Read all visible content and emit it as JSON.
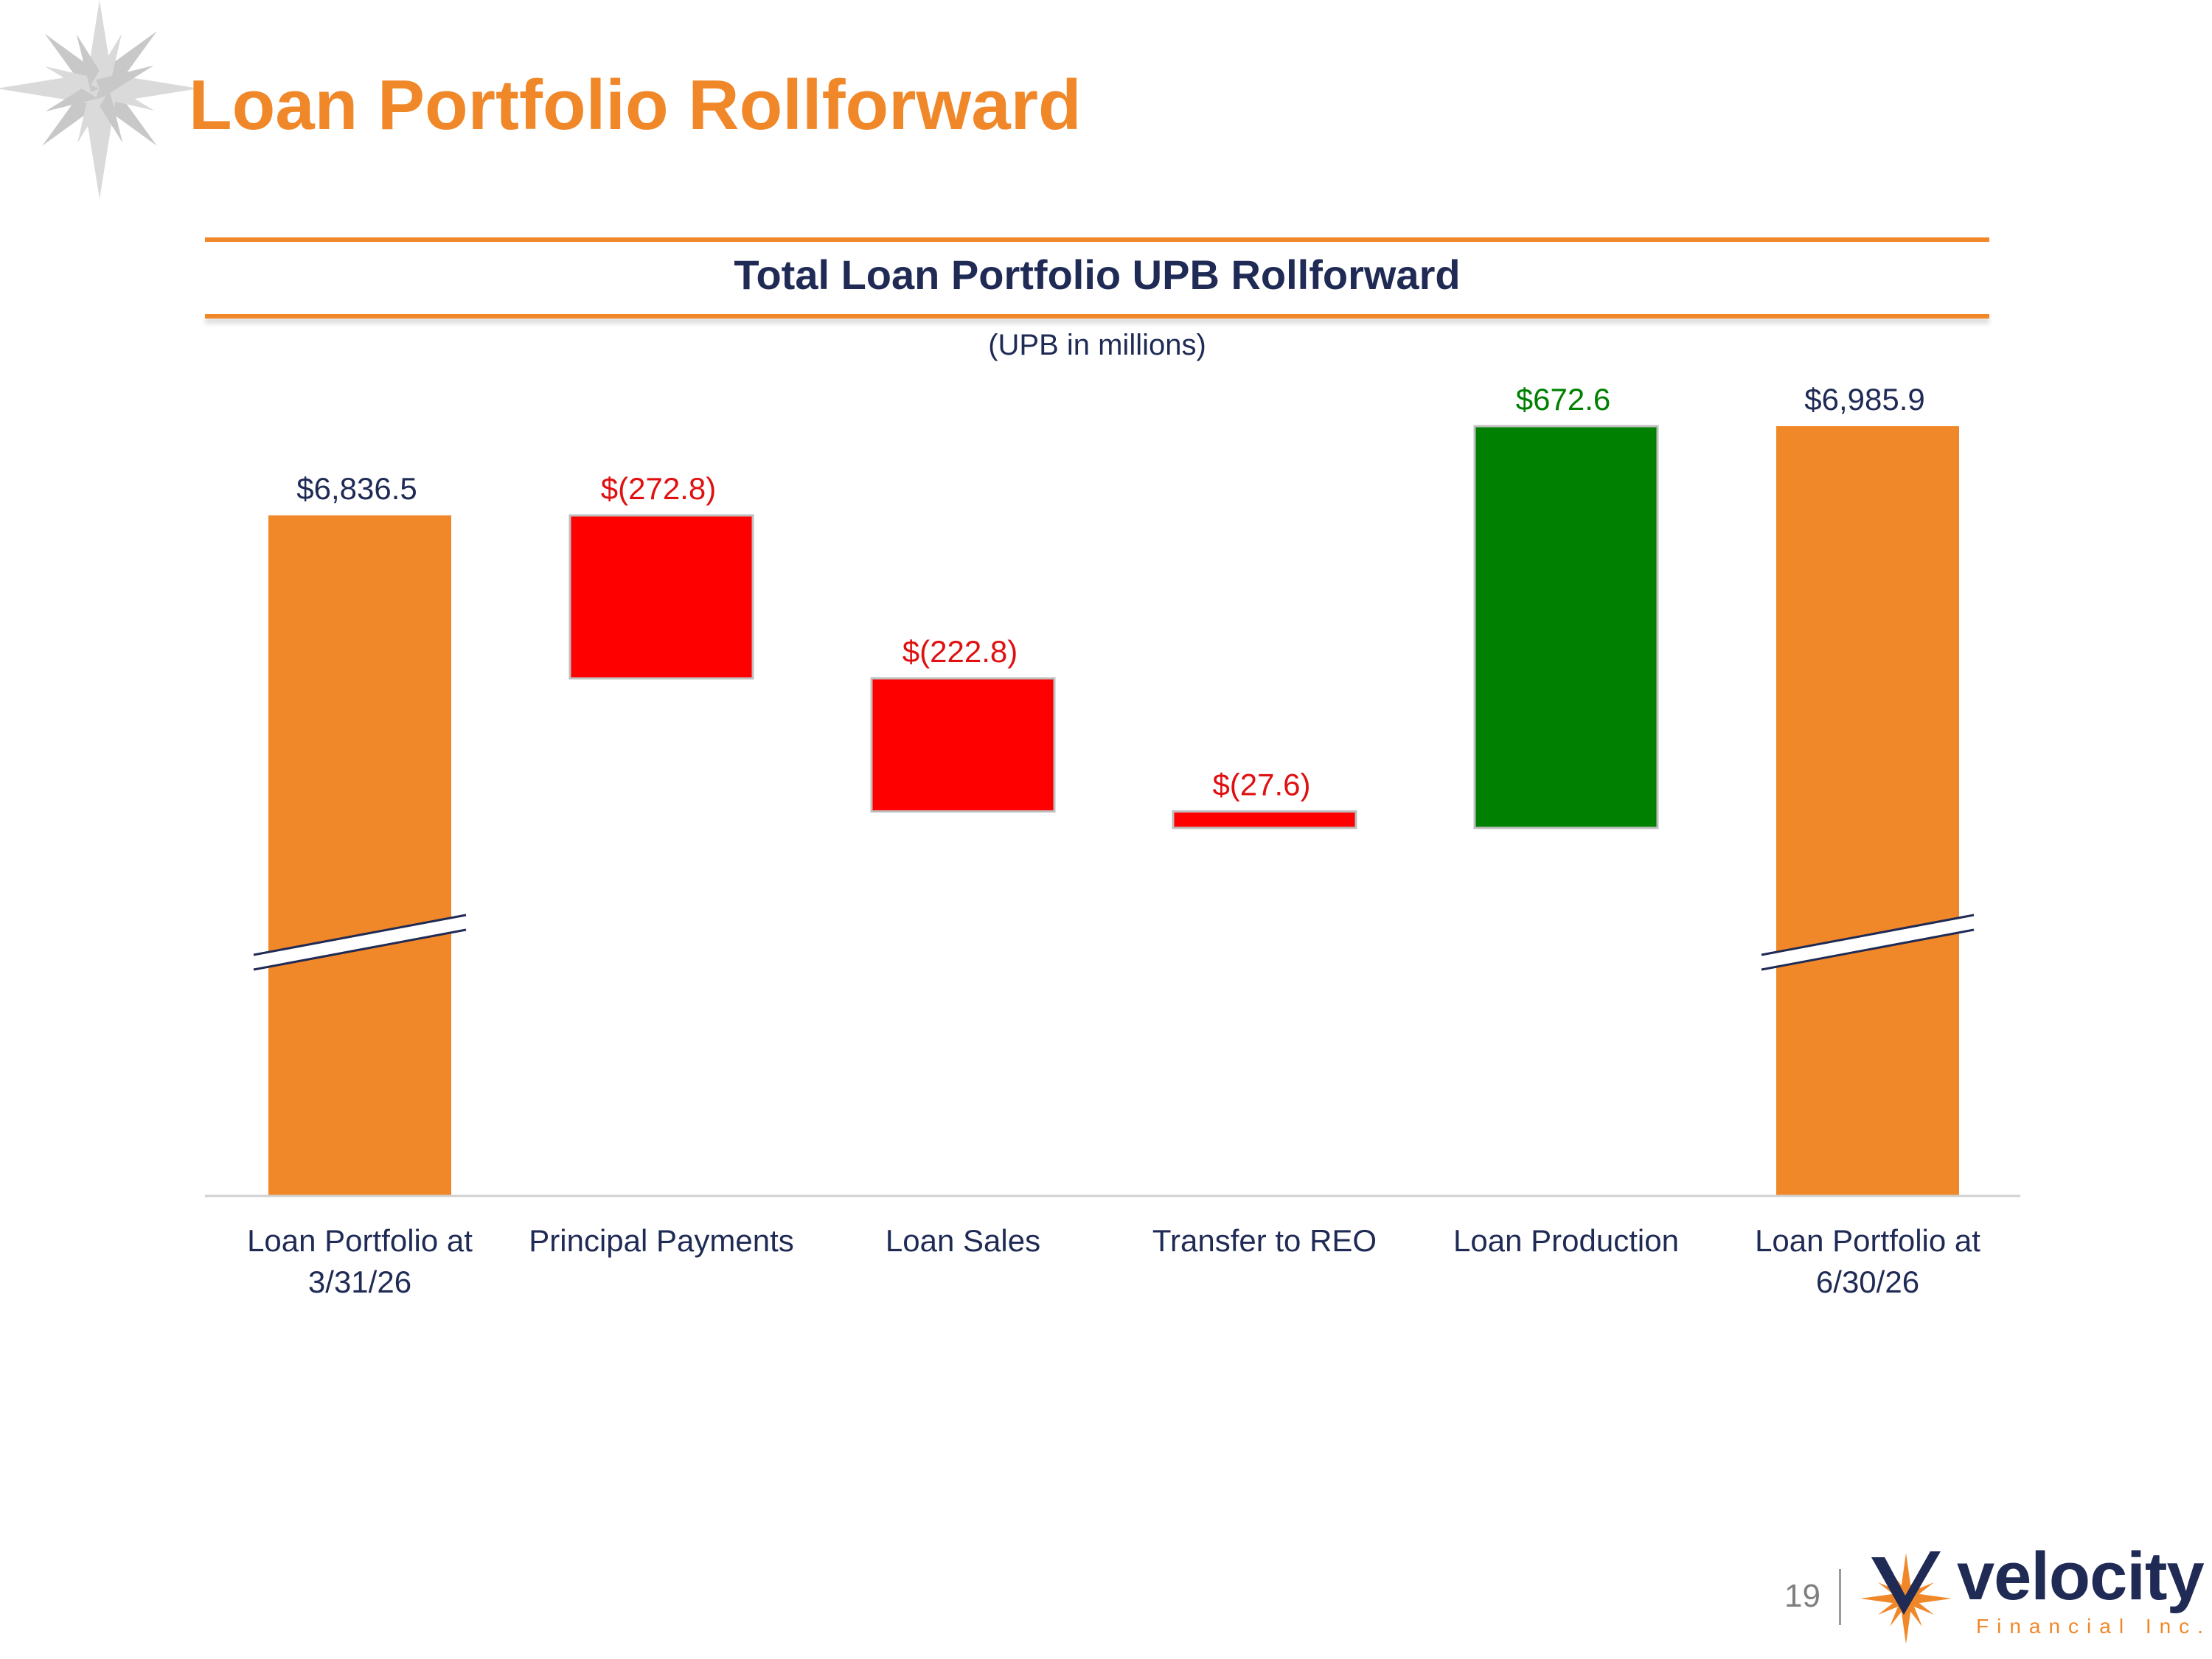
{
  "slide": {
    "title": "Loan Portfolio Rollforward",
    "page_number": "19"
  },
  "logo": {
    "wordmark": "velocity",
    "subtitle": "Financial Inc."
  },
  "colors": {
    "title": "#F0882A",
    "navy": "#1F2A55",
    "total_bar": "#F0882A",
    "decrease_bar": "#FF0000",
    "increase_bar": "#008000",
    "decrease_label": "#E01010",
    "increase_label": "#008000"
  },
  "chart_data": {
    "type": "bar",
    "subtype": "waterfall",
    "title": "Total Loan Portfolio UPB Rollforward",
    "subtitle": "(UPB in millions)",
    "axis_break": true,
    "categories": [
      "Loan Portfolio at 3/31/26",
      "Principal Payments",
      "Loan Sales",
      "Transfer to REO",
      "Loan Production",
      "Loan Portfolio at 6/30/26"
    ],
    "category_lines": [
      [
        "Loan Portfolio at",
        "3/31/26"
      ],
      [
        "Principal Payments"
      ],
      [
        "Loan Sales"
      ],
      [
        "Transfer to REO"
      ],
      [
        "Loan Production"
      ],
      [
        "Loan Portfolio at",
        "6/30/26"
      ]
    ],
    "values": [
      6836.5,
      -272.8,
      -222.8,
      -27.6,
      672.6,
      6985.9
    ],
    "kinds": [
      "total",
      "decrease",
      "decrease",
      "decrease",
      "increase",
      "total"
    ],
    "data_labels": [
      "$6,836.5",
      "$(272.8)",
      "$(222.8)",
      "$(27.6)",
      "$672.6",
      "$6,985.9"
    ]
  }
}
